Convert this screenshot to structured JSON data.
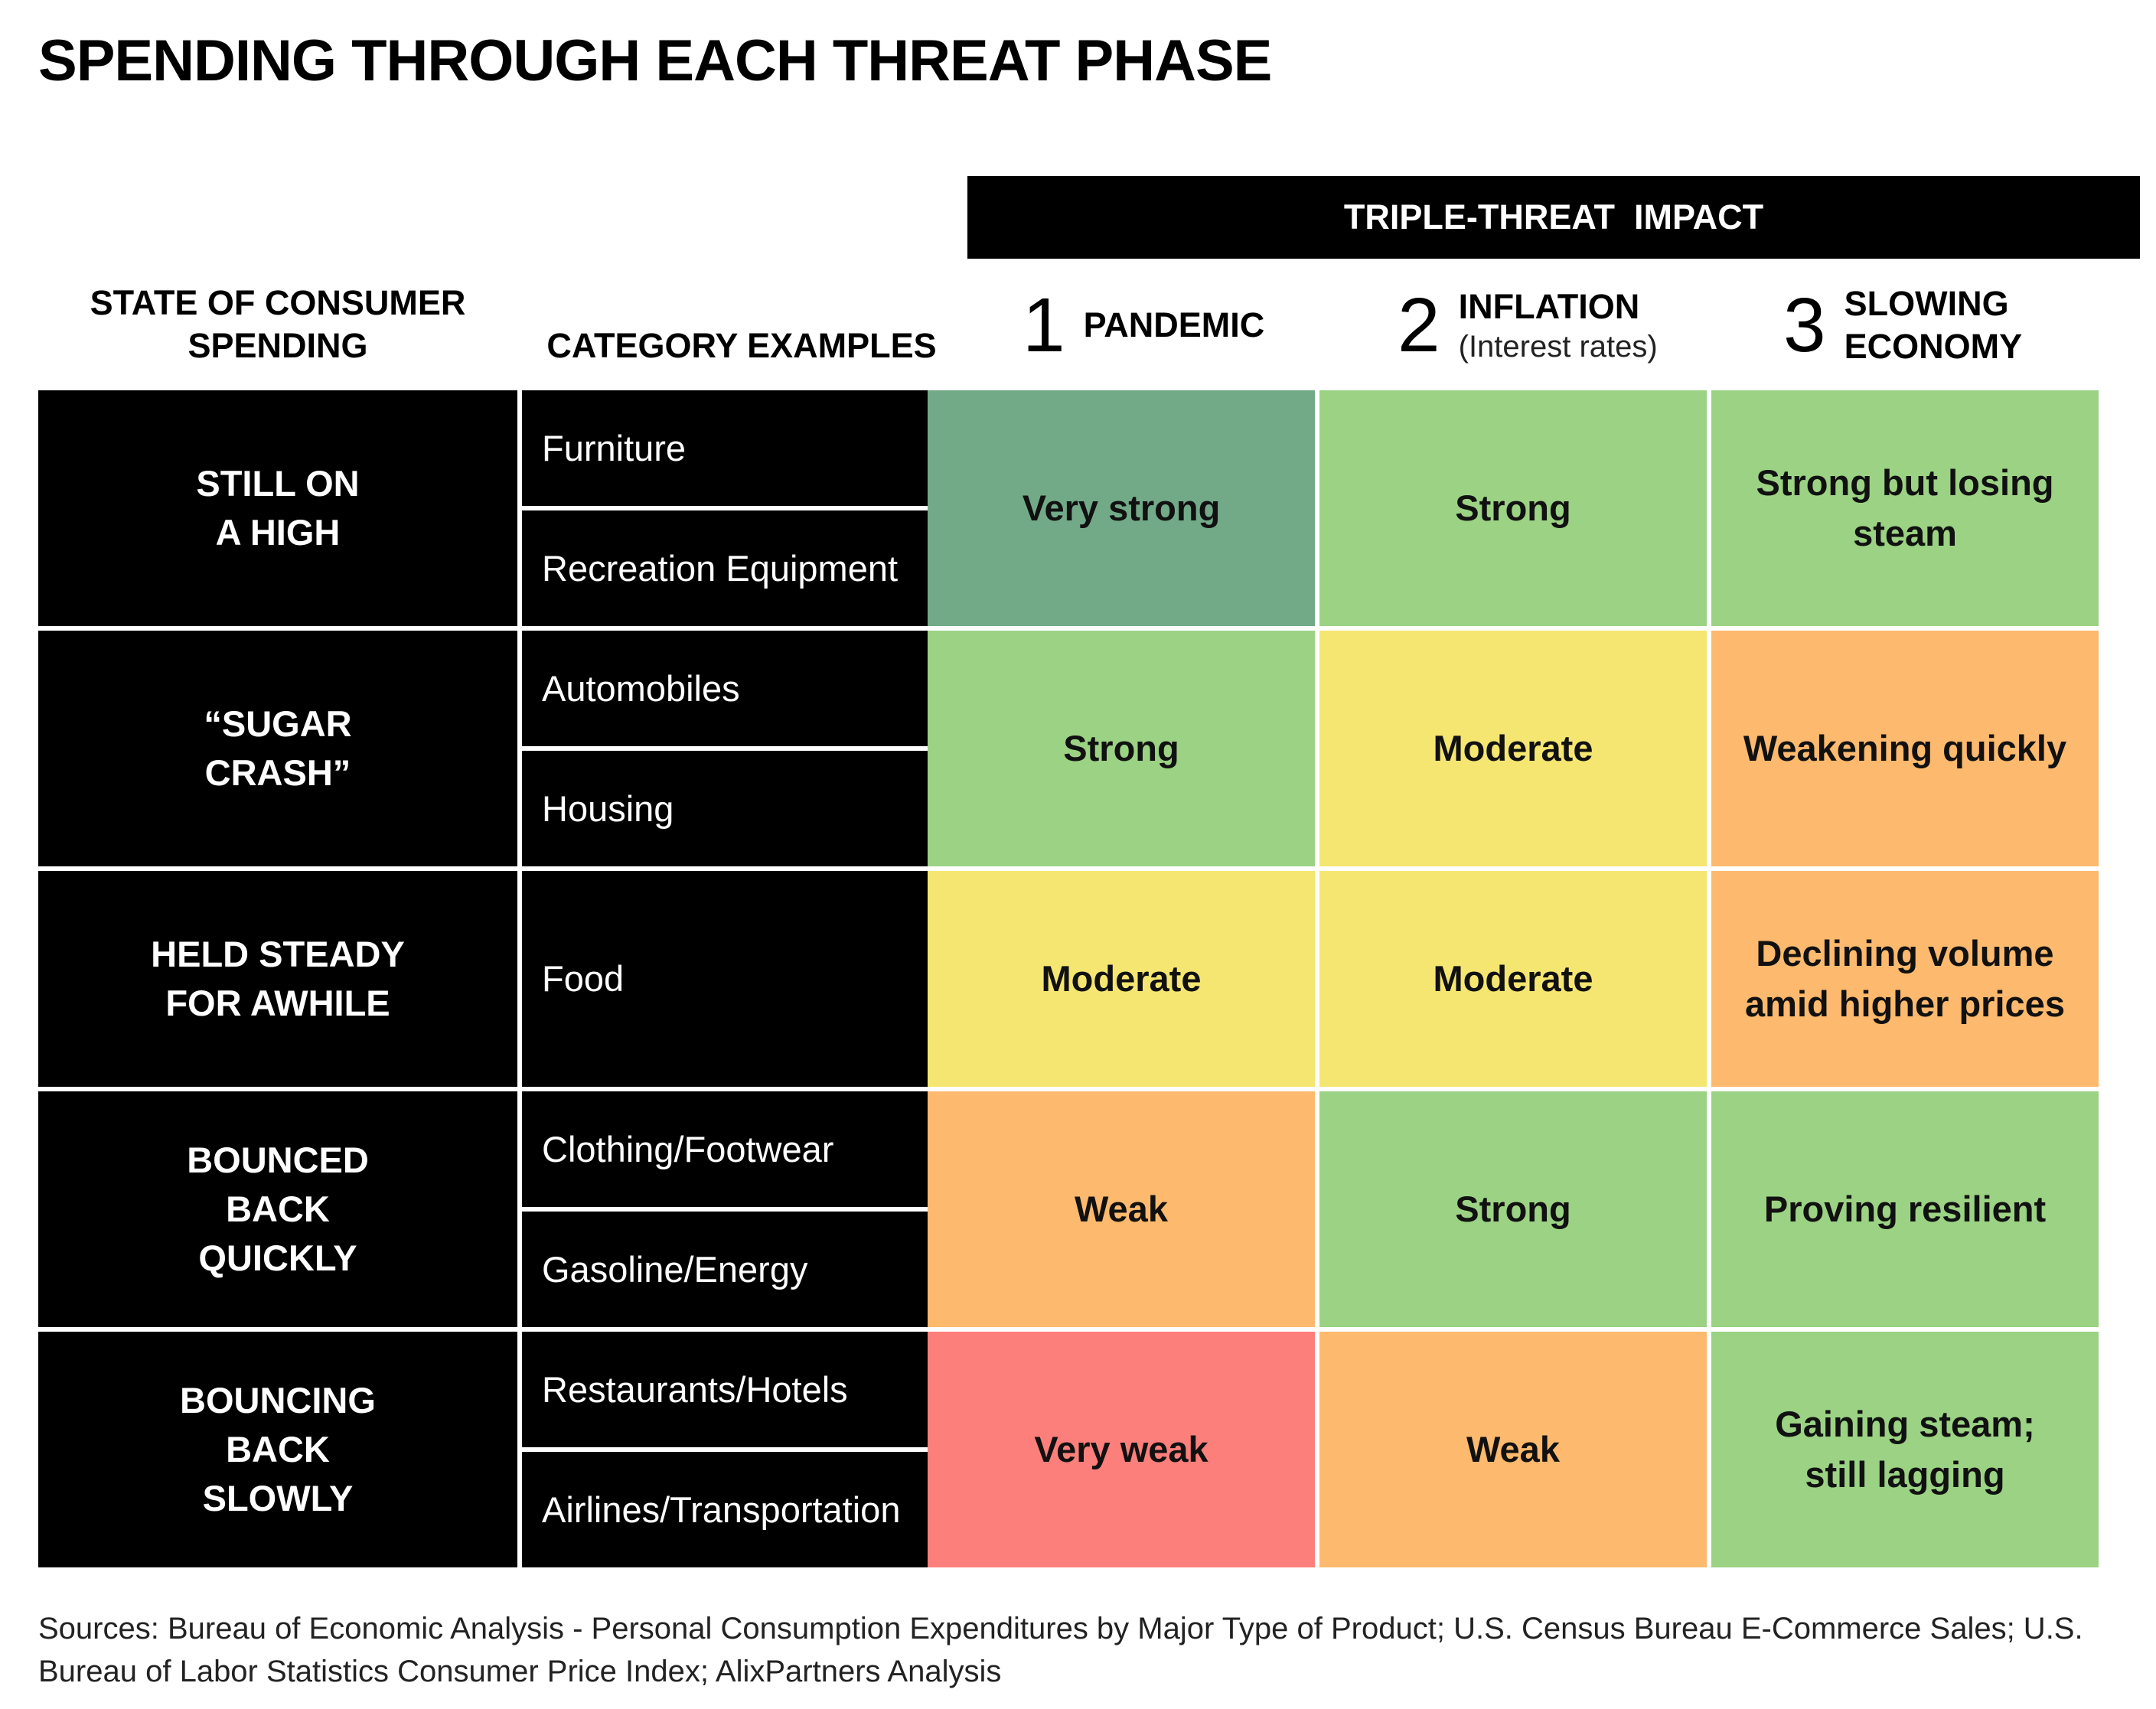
{
  "title": "SPENDING THROUGH EACH THREAT PHASE",
  "impact_header": "TRIPLE-THREAT  IMPACT",
  "column_headers": {
    "state": "STATE OF CONSUMER\nSPENDING",
    "category": "CATEGORY EXAMPLES"
  },
  "phases": [
    {
      "num": "1",
      "name": "PANDEMIC",
      "sub": ""
    },
    {
      "num": "2",
      "name": "INFLATION",
      "sub": "(Interest rates)"
    },
    {
      "num": "3",
      "name": "SLOWING\nECONOMY",
      "sub": ""
    }
  ],
  "colors": {
    "very_strong": "#72aa88",
    "strong": "#9bd283",
    "moderate": "#f5e671",
    "weak": "#fdb96d",
    "very_weak": "#fd7f7b"
  },
  "chart_data": {
    "type": "table",
    "rows": [
      {
        "state": "STILL ON\nA HIGH",
        "categories": [
          "Furniture",
          "Recreation Equipment"
        ],
        "impacts": [
          {
            "text": "Very strong",
            "level": "very_strong"
          },
          {
            "text": "Strong",
            "level": "strong"
          },
          {
            "text": "Strong but losing\nsteam",
            "level": "strong"
          }
        ]
      },
      {
        "state": "“SUGAR\nCRASH”",
        "categories": [
          "Automobiles",
          "Housing"
        ],
        "impacts": [
          {
            "text": "Strong",
            "level": "strong"
          },
          {
            "text": "Moderate",
            "level": "moderate"
          },
          {
            "text": "Weakening quickly",
            "level": "weak"
          }
        ]
      },
      {
        "state": "HELD STEADY\nFOR AWHILE",
        "categories": [
          "Food"
        ],
        "impacts": [
          {
            "text": "Moderate",
            "level": "moderate"
          },
          {
            "text": "Moderate",
            "level": "moderate"
          },
          {
            "text": "Declining volume\namid higher prices",
            "level": "weak"
          }
        ]
      },
      {
        "state": "BOUNCED\nBACK\nQUICKLY",
        "categories": [
          "Clothing/Footwear",
          "Gasoline/Energy"
        ],
        "impacts": [
          {
            "text": "Weak",
            "level": "weak"
          },
          {
            "text": "Strong",
            "level": "strong"
          },
          {
            "text": "Proving resilient",
            "level": "strong"
          }
        ]
      },
      {
        "state": "BOUNCING\nBACK\nSLOWLY",
        "categories": [
          "Restaurants/Hotels",
          "Airlines/Transportation"
        ],
        "impacts": [
          {
            "text": "Very weak",
            "level": "very_weak"
          },
          {
            "text": "Weak",
            "level": "weak"
          },
          {
            "text": "Gaining steam;\nstill lagging",
            "level": "strong"
          }
        ]
      }
    ]
  },
  "sources": "Sources: Bureau of Economic Analysis - Personal Consumption Expenditures by Major Type of Product; U.S. Census Bureau E-Commerce Sales; U.S. Bureau of Labor Statistics Consumer Price Index; AlixPartners Analysis"
}
